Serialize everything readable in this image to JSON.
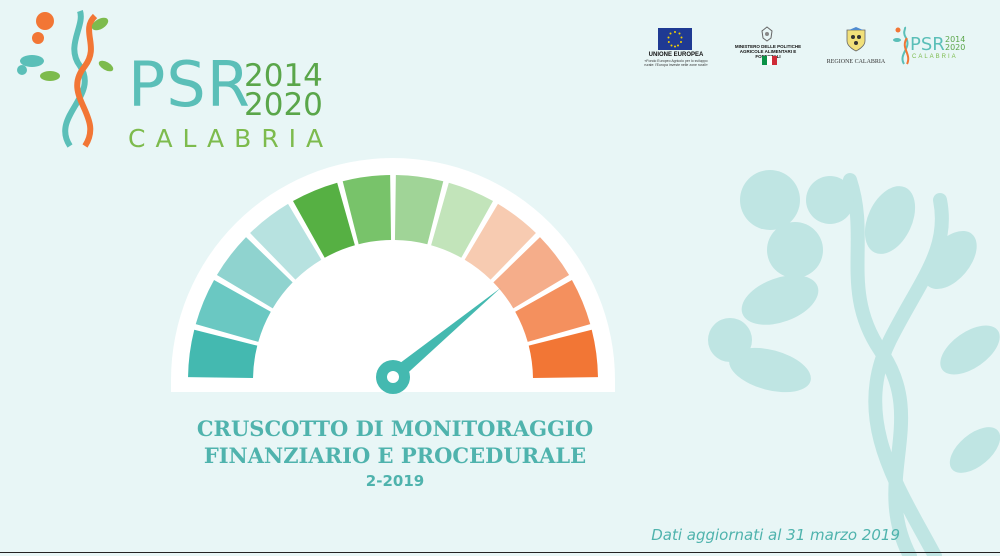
{
  "logo": {
    "word": "PSR",
    "year_start": "2014",
    "year_end": "2020",
    "region": "CALABRIA"
  },
  "partners": {
    "eu": {
      "label": "UNIONE EUROPEA",
      "subtext": "«Fondo Europeo Agricolo per lo sviluppo rurale: l'Europa investe nelle zone rurali»"
    },
    "ministry": {
      "label": "MINISTERO DELLE POLITICHE AGRICOLE ALIMENTARI E FORESTALI"
    },
    "region": {
      "label": "REGIONE CALABRIA"
    },
    "mini_psr": {
      "word": "PSR",
      "year_start": "2014",
      "year_end": "2020",
      "region": "CALABRIA"
    }
  },
  "gauge": {
    "value_fraction": 0.78,
    "segment_colors": [
      "#44b9b0",
      "#6ac8c2",
      "#8fd3cf",
      "#b7e2e0",
      "#56b043",
      "#78c36a",
      "#a0d497",
      "#c2e4ba",
      "#f7cbb1",
      "#f5ad8a",
      "#f4905e",
      "#f27635"
    ],
    "needle_color": "#44b9b0",
    "face_color": "#ffffff"
  },
  "title": {
    "line1": "CRUSCOTTO DI MONITORAGGIO",
    "line2": "FINANZIARIO E PROCEDURALE",
    "period": "2-2019"
  },
  "footer": {
    "updated": "Dati aggiornati al 31 marzo 2019"
  },
  "colors": {
    "background": "#e8f6f6",
    "accent_teal": "#4fb3ad",
    "accent_green": "#5aa64a",
    "accent_orange": "#f27635"
  }
}
